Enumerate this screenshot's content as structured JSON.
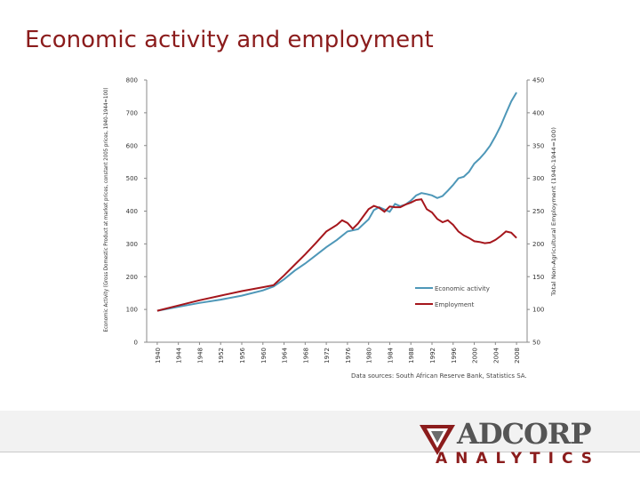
{
  "slide": {
    "title": "Economic activity and employment",
    "source_note": "Data sources: South African Reserve Bank, Statistics SA."
  },
  "logo": {
    "name": "ADCORP",
    "tagline": "ANALYTICS"
  },
  "colors": {
    "title": "#8b1c1c",
    "economic": "#4e97b8",
    "employment": "#a5161c"
  },
  "chart_data": {
    "type": "line",
    "x_ticks": [
      "1940",
      "1944",
      "1948",
      "1952",
      "1956",
      "1960",
      "1964",
      "1968",
      "1972",
      "1976",
      "1980",
      "1984",
      "1988",
      "1992",
      "1996",
      "2000",
      "2004",
      "2008"
    ],
    "y_left": {
      "label": "Economic Activity (Gross Domestic Product at market prices, constant 2005 prices, 1940-1944=100)",
      "lim": [
        0,
        800
      ],
      "ticks": [
        0,
        100,
        200,
        300,
        400,
        500,
        600,
        700,
        800
      ]
    },
    "y_right": {
      "label": "Total Non-Agricultural Employment (1940-1944=100)",
      "lim": [
        50,
        450
      ],
      "ticks": [
        50,
        100,
        150,
        200,
        250,
        300,
        350,
        400,
        450
      ]
    },
    "legend": {
      "placement": "inside-lower-right"
    },
    "series": [
      {
        "name": "Economic activity",
        "axis": "left",
        "points": [
          [
            1940,
            96
          ],
          [
            1944,
            108
          ],
          [
            1948,
            120
          ],
          [
            1952,
            130
          ],
          [
            1956,
            142
          ],
          [
            1960,
            158
          ],
          [
            1962,
            170
          ],
          [
            1964,
            192
          ],
          [
            1966,
            218
          ],
          [
            1968,
            240
          ],
          [
            1970,
            265
          ],
          [
            1972,
            290
          ],
          [
            1974,
            312
          ],
          [
            1976,
            338
          ],
          [
            1978,
            345
          ],
          [
            1980,
            375
          ],
          [
            1981,
            403
          ],
          [
            1982,
            412
          ],
          [
            1983,
            405
          ],
          [
            1984,
            398
          ],
          [
            1985,
            422
          ],
          [
            1986,
            415
          ],
          [
            1987,
            420
          ],
          [
            1988,
            432
          ],
          [
            1989,
            448
          ],
          [
            1990,
            455
          ],
          [
            1991,
            452
          ],
          [
            1992,
            448
          ],
          [
            1993,
            440
          ],
          [
            1994,
            446
          ],
          [
            1995,
            462
          ],
          [
            1996,
            480
          ],
          [
            1997,
            500
          ],
          [
            1998,
            505
          ],
          [
            1999,
            520
          ],
          [
            2000,
            545
          ],
          [
            2001,
            560
          ],
          [
            2002,
            578
          ],
          [
            2003,
            600
          ],
          [
            2004,
            628
          ],
          [
            2005,
            660
          ],
          [
            2006,
            698
          ],
          [
            2007,
            735
          ],
          [
            2008,
            762
          ]
        ]
      },
      {
        "name": "Employment",
        "axis": "right",
        "points": [
          [
            1940,
            98
          ],
          [
            1944,
            106
          ],
          [
            1948,
            114
          ],
          [
            1952,
            121
          ],
          [
            1956,
            128
          ],
          [
            1960,
            134
          ],
          [
            1962,
            137
          ],
          [
            1964,
            152
          ],
          [
            1966,
            168
          ],
          [
            1968,
            184
          ],
          [
            1970,
            201
          ],
          [
            1972,
            219
          ],
          [
            1974,
            229
          ],
          [
            1975,
            236
          ],
          [
            1976,
            232
          ],
          [
            1977,
            223
          ],
          [
            1978,
            231
          ],
          [
            1979,
            242
          ],
          [
            1980,
            253
          ],
          [
            1981,
            258
          ],
          [
            1982,
            255
          ],
          [
            1983,
            249
          ],
          [
            1984,
            257
          ],
          [
            1985,
            256
          ],
          [
            1986,
            256
          ],
          [
            1987,
            260
          ],
          [
            1988,
            263
          ],
          [
            1989,
            267
          ],
          [
            1990,
            268
          ],
          [
            1991,
            253
          ],
          [
            1992,
            248
          ],
          [
            1993,
            238
          ],
          [
            1994,
            233
          ],
          [
            1995,
            236
          ],
          [
            1996,
            229
          ],
          [
            1997,
            219
          ],
          [
            1998,
            213
          ],
          [
            1999,
            209
          ],
          [
            2000,
            204
          ],
          [
            2001,
            203
          ],
          [
            2002,
            201
          ],
          [
            2003,
            202
          ],
          [
            2004,
            206
          ],
          [
            2005,
            212
          ],
          [
            2006,
            219
          ],
          [
            2007,
            217
          ],
          [
            2008,
            209
          ]
        ]
      }
    ]
  }
}
